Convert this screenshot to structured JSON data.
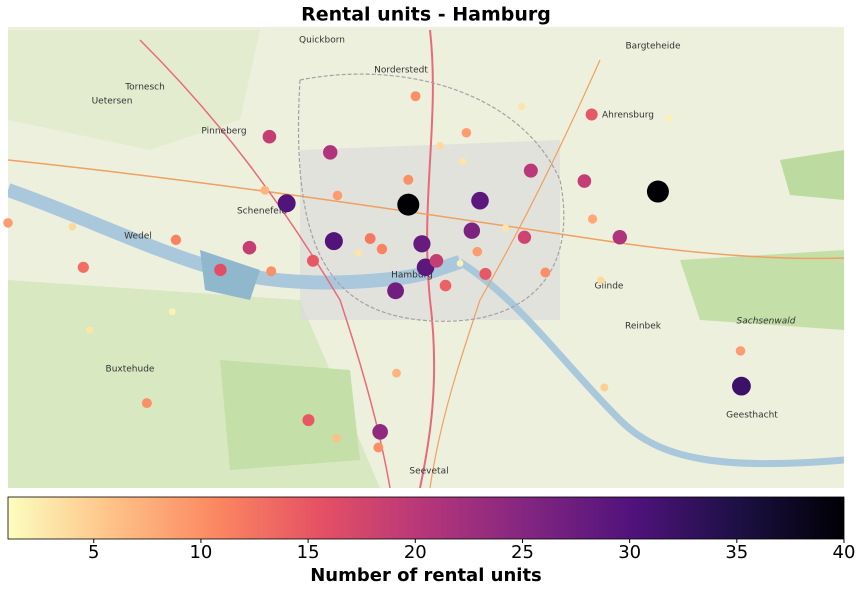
{
  "chart_data": {
    "type": "scatter",
    "title": "Rental units - Hamburg",
    "x": [
      9.998,
      10.273,
      10.365,
      9.916,
      9.864,
      10.077,
      10.013,
      10.017,
      10.068,
      9.984,
      9.967,
      10.133,
      10.192,
      10.231,
      10.126,
      10.029,
      9.912,
      9.845,
      9.823,
      10.2,
      10.083,
      10.039,
      9.888,
      9.791,
      9.893,
      9.64,
      9.742,
      9.956,
      9.969,
      10.006,
      9.998,
      10.062,
      9.92,
      10.074,
      10.149,
      10.201,
      10.364,
      9.71,
      9.847,
      9.84,
      9.965,
      9.985,
      9.557,
      9.919,
      10.214,
      10.21,
      10.033,
      10.123,
      10.058,
      10.285,
      9.628,
      9.647,
      9.738,
      10.105,
      9.943,
      10.055
    ],
    "y": [
      53.601,
      53.611,
      53.462,
      53.573,
      53.602,
      53.604,
      53.571,
      53.553,
      53.581,
      53.535,
      53.427,
      53.627,
      53.619,
      53.576,
      53.576,
      53.558,
      53.641,
      53.653,
      53.568,
      53.67,
      53.548,
      53.539,
      53.436,
      53.551,
      53.558,
      53.553,
      53.574,
      53.575,
      53.567,
      53.684,
      53.62,
      53.656,
      53.608,
      53.565,
      53.549,
      53.59,
      53.489,
      53.449,
      53.55,
      53.612,
      53.415,
      53.472,
      53.587,
      53.422,
      53.461,
      53.543,
      53.646,
      53.676,
      53.634,
      53.667,
      53.584,
      53.505,
      53.519,
      53.583,
      53.564,
      53.556
    ],
    "values": [
      40,
      40,
      32,
      30,
      30,
      29,
      28,
      29,
      26,
      27,
      24,
      20,
      19,
      21,
      18,
      19,
      21,
      19,
      19,
      15,
      15,
      14,
      15,
      16,
      15,
      13,
      11,
      12,
      11,
      10,
      10,
      9,
      9,
      9,
      10,
      8,
      9,
      10,
      10,
      7,
      10,
      7,
      9,
      6,
      5,
      4,
      4,
      3,
      3,
      2,
      4,
      3,
      2,
      3,
      3,
      2
    ],
    "xlim": [
      9.557,
      10.478
    ],
    "ylim": [
      53.384,
      53.737
    ],
    "clim": [
      1,
      40
    ],
    "cticks": [
      5,
      10,
      15,
      20,
      25,
      30,
      35,
      40
    ],
    "colorbar_label": "Number of rental units",
    "colors": [
      "#fcfdbf",
      "#fec287",
      "#fb8761",
      "#e55064",
      "#b5367a",
      "#812581",
      "#4f127b",
      "#1c1044",
      "#000004"
    ],
    "map_labels": [
      "Hamburg",
      "Wedel",
      "Pinneberg",
      "Norderstedt",
      "Ahrensburg",
      "Glinde",
      "Reinbek",
      "Geesthacht",
      "Buxtehude",
      "Seevetal",
      "Schenefeld",
      "Uetersen",
      "Tornesch",
      "Quickborn",
      "Bargteheide",
      "Sachsenwald"
    ]
  }
}
